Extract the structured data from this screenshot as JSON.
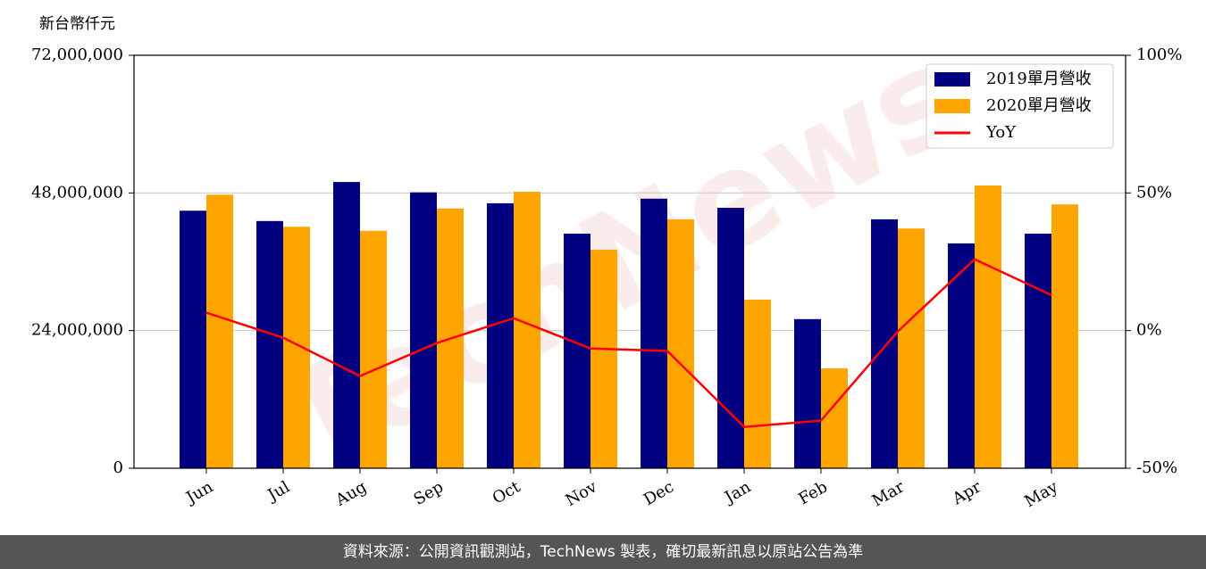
{
  "chart_data": {
    "type": "bar_line",
    "y_axis_label": "新台幣仟元",
    "watermark": "TechNews",
    "categories": [
      "Jun",
      "Jul",
      "Aug",
      "Sep",
      "Oct",
      "Nov",
      "Dec",
      "Jan",
      "Feb",
      "Mar",
      "Apr",
      "May"
    ],
    "series": [
      {
        "name": "2019單月營收",
        "color": "#000080",
        "values": [
          44900000,
          43100000,
          49900000,
          48100000,
          46200000,
          40900000,
          47000000,
          45400000,
          26000000,
          43400000,
          39200000,
          40900000
        ]
      },
      {
        "name": "2020單月營收",
        "color": "#ffa500",
        "values": [
          47700000,
          42100000,
          41400000,
          45300000,
          48200000,
          38100000,
          43400000,
          29400000,
          17400000,
          41800000,
          49300000,
          46000000
        ]
      },
      {
        "name": "YoY",
        "color": "#ff0000",
        "axis": "y2",
        "values": [
          6.5,
          -2.6,
          -16.5,
          -4.5,
          4.5,
          -6.5,
          -7.4,
          -35,
          -32.7,
          -0.3,
          25.9,
          12.9
        ]
      }
    ],
    "ylim": [
      0,
      72000000
    ],
    "yticks": [
      0,
      {
        "value": 24000000,
        "label": "24,000,000"
      },
      {
        "value": 48000000,
        "label": "48,000,000"
      },
      {
        "value": 72000000,
        "label": "72,000,000"
      }
    ],
    "y2lim": [
      -50,
      100
    ],
    "y2ticks": [
      {
        "value": -50,
        "label": "-50%"
      },
      {
        "value": 0,
        "label": "0%"
      },
      {
        "value": 50,
        "label": "50%"
      },
      {
        "value": 100,
        "label": "100%"
      }
    ],
    "grid": true,
    "legend": "upper right"
  },
  "footer": "資料來源：公開資訊觀測站，TechNews 製表，確切最新訊息以原站公告為準"
}
